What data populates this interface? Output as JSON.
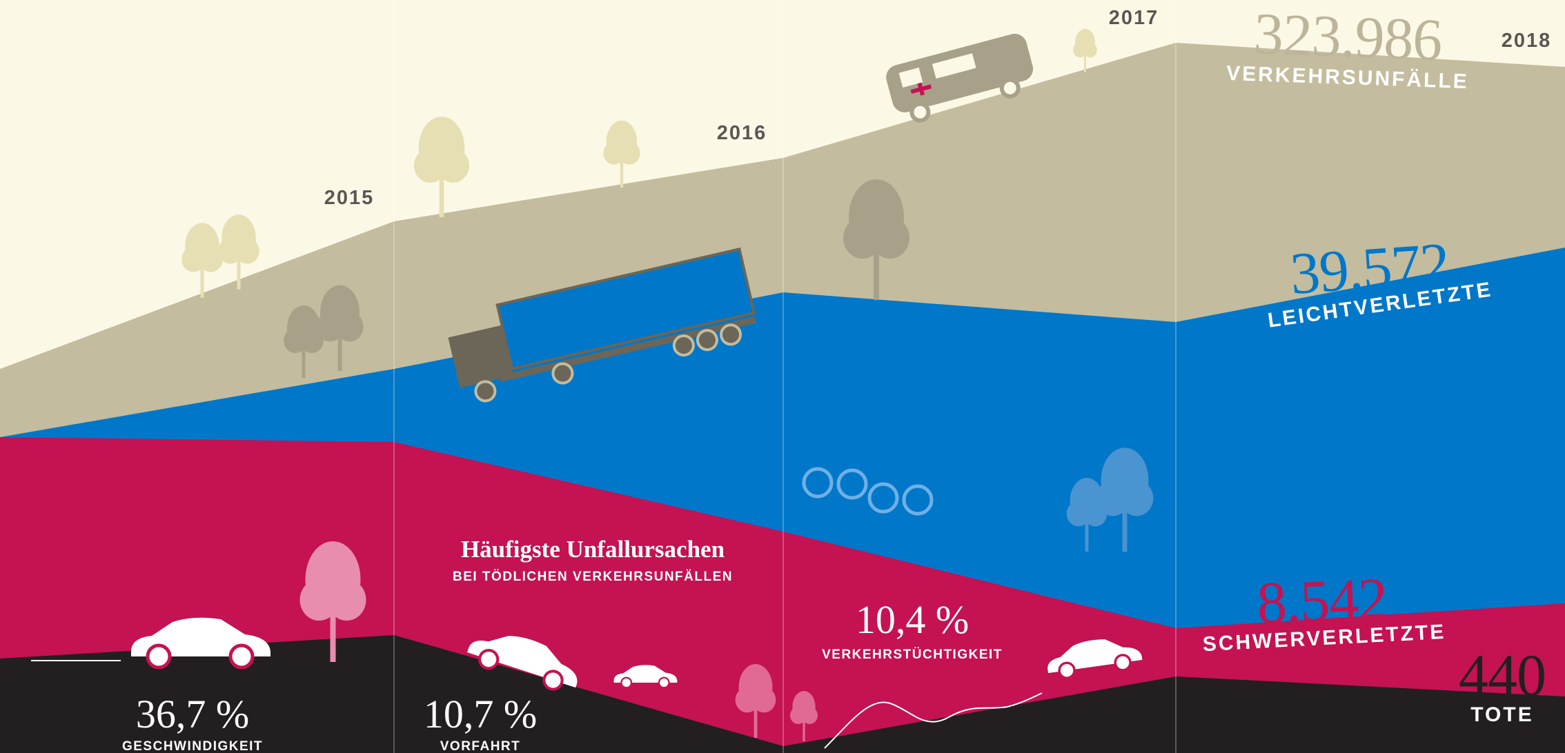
{
  "years": [
    "2015",
    "2016",
    "2017",
    "2018"
  ],
  "totals": [
    {
      "value": "323.986",
      "label": "VERKEHRSUNFÄLLE"
    },
    {
      "value": "39.572",
      "label": "LEICHTVERLETZTE"
    },
    {
      "value": "8.542",
      "label": "SCHWERVERLETZTE"
    },
    {
      "value": "440",
      "label": "TOTE"
    }
  ],
  "causes": {
    "title": "Häufigste Unfallursachen",
    "subtitle": "BEI TÖDLICHEN VERKEHRSUNFÄLLEN",
    "items": [
      {
        "value": "36,7 %",
        "label": "GESCHWINDIGKEIT"
      },
      {
        "value": "10,7 %",
        "label": "VORFAHRT"
      },
      {
        "value": "10,4 %",
        "label": "VERKEHRSTÜCHTIGKEIT"
      }
    ]
  }
}
